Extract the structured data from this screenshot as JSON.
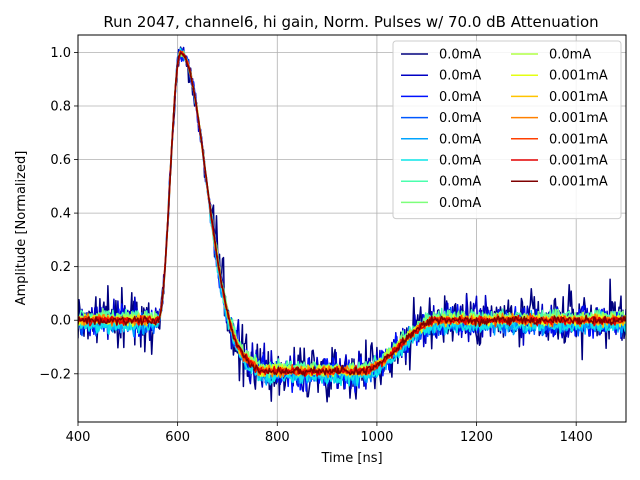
{
  "chart_data": {
    "type": "line",
    "title": "Run 2047, channel6, hi gain, Norm. Pulses w/ 70.0 dB Attenuation",
    "xlabel": "Time [ns]",
    "ylabel": "Amplitude [Normalized]",
    "xlim": [
      400,
      1500
    ],
    "ylim": [
      -0.38,
      1.065
    ],
    "xticks": [
      400,
      600,
      800,
      1000,
      1200,
      1400
    ],
    "yticks": [
      -0.2,
      0.0,
      0.2,
      0.4,
      0.6,
      0.8,
      1.0
    ],
    "xtick_labels": [
      "400",
      "600",
      "800",
      "1000",
      "1200",
      "1400"
    ],
    "ytick_labels": [
      "−0.2",
      "0.0",
      "0.2",
      "0.4",
      "0.6",
      "0.8",
      "1.0"
    ],
    "grid": true,
    "legend_position": "top-right",
    "legend_columns": 2,
    "pulse_shape": {
      "baseline": 0.0,
      "rise_start_ns": 560,
      "peak_time_ns": 606,
      "peak_value": 1.0,
      "undershoot_min": -0.19,
      "undershoot_flat_from_ns": 760,
      "undershoot_flat_to_ns": 965,
      "recovery_end_ns": 1150
    },
    "series": [
      {
        "name": "0.0mA",
        "color": "#00007f",
        "noise": 0.075,
        "offset": 0.0
      },
      {
        "name": "0.0mA",
        "color": "#0000c4",
        "noise": 0.05,
        "offset": 0.0
      },
      {
        "name": "0.0mA",
        "color": "#0010ff",
        "noise": 0.04,
        "offset": -0.005
      },
      {
        "name": "0.0mA",
        "color": "#0058ff",
        "noise": 0.03,
        "offset": -0.01
      },
      {
        "name": "0.0mA",
        "color": "#00a4ff",
        "noise": 0.025,
        "offset": -0.015
      },
      {
        "name": "0.0mA",
        "color": "#0de5e9",
        "noise": 0.02,
        "offset": -0.02
      },
      {
        "name": "0.0mA",
        "color": "#4affad",
        "noise": 0.018,
        "offset": 0.015
      },
      {
        "name": "0.0mA",
        "color": "#7dff7a",
        "noise": 0.016,
        "offset": 0.01
      },
      {
        "name": "0.0mA",
        "color": "#b0ff46",
        "noise": 0.015,
        "offset": 0.005
      },
      {
        "name": "0.001mA",
        "color": "#e4ff13",
        "noise": 0.014,
        "offset": 0.0
      },
      {
        "name": "0.001mA",
        "color": "#ffc400",
        "noise": 0.013,
        "offset": 0.0
      },
      {
        "name": "0.001mA",
        "color": "#ff8000",
        "noise": 0.013,
        "offset": 0.0
      },
      {
        "name": "0.001mA",
        "color": "#ff3f00",
        "noise": 0.012,
        "offset": 0.0
      },
      {
        "name": "0.001mA",
        "color": "#e30000",
        "noise": 0.012,
        "offset": 0.0
      },
      {
        "name": "0.001mA",
        "color": "#7f0000",
        "noise": 0.011,
        "offset": 0.0
      }
    ]
  }
}
